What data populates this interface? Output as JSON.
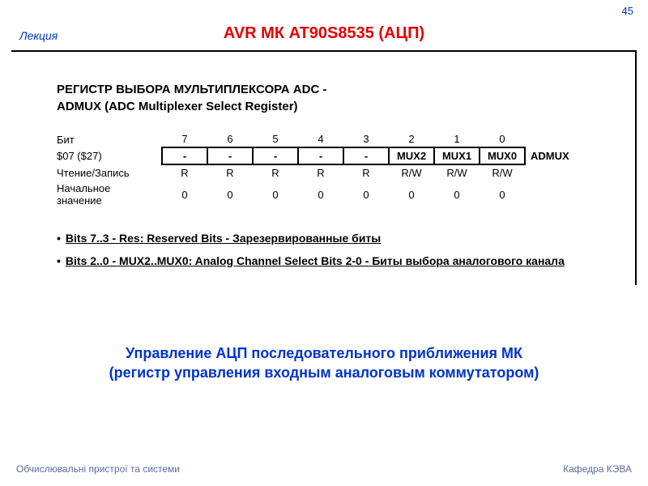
{
  "page_number": "45",
  "lecture_label": "Лекция",
  "main_title": "AVR МК AT90S8535 (АЦП)",
  "colors": {
    "page_number": "#0033cc",
    "lecture_label": "#0033cc",
    "main_title": "#e60000",
    "subtitle": "#0033cc",
    "footer": "#5b6aa0",
    "text": "#000000",
    "background": "#ffffff"
  },
  "register": {
    "heading_line1": "РЕГИСТР ВЫБОРА МУЛЬТИПЛЕКСОРА ADC -",
    "heading_line2": "ADMUX (ADC Multiplexer Select Register)",
    "row_labels": {
      "bit": "Бит",
      "addr": "$07 ($27)",
      "rw": "Чтение/Запись",
      "init": "Начальное значение"
    },
    "name": "ADMUX",
    "bits": [
      "7",
      "6",
      "5",
      "4",
      "3",
      "2",
      "1",
      "0"
    ],
    "fields": [
      "-",
      "-",
      "-",
      "-",
      "-",
      "MUX2",
      "MUX1",
      "MUX0"
    ],
    "rw": [
      "R",
      "R",
      "R",
      "R",
      "R",
      "R/W",
      "R/W",
      "R/W"
    ],
    "init": [
      "0",
      "0",
      "0",
      "0",
      "0",
      "0",
      "0",
      "0"
    ]
  },
  "bit_descriptions": [
    "Bits 7..3 - Res: Reserved Bits - Зарезервированные биты",
    "Bits 2..0 - MUX2..MUX0: Analog Channel Select Bits 2-0 - Биты выбора аналогового канала"
  ],
  "subtitle_line1": "Управление АЦП последовательного приближения МК",
  "subtitle_line2": "(регистр управления входным аналоговым коммутатором)",
  "footer_left": "Обчислювальні пристрої та системи",
  "footer_right": "Кафедра КЭВА"
}
